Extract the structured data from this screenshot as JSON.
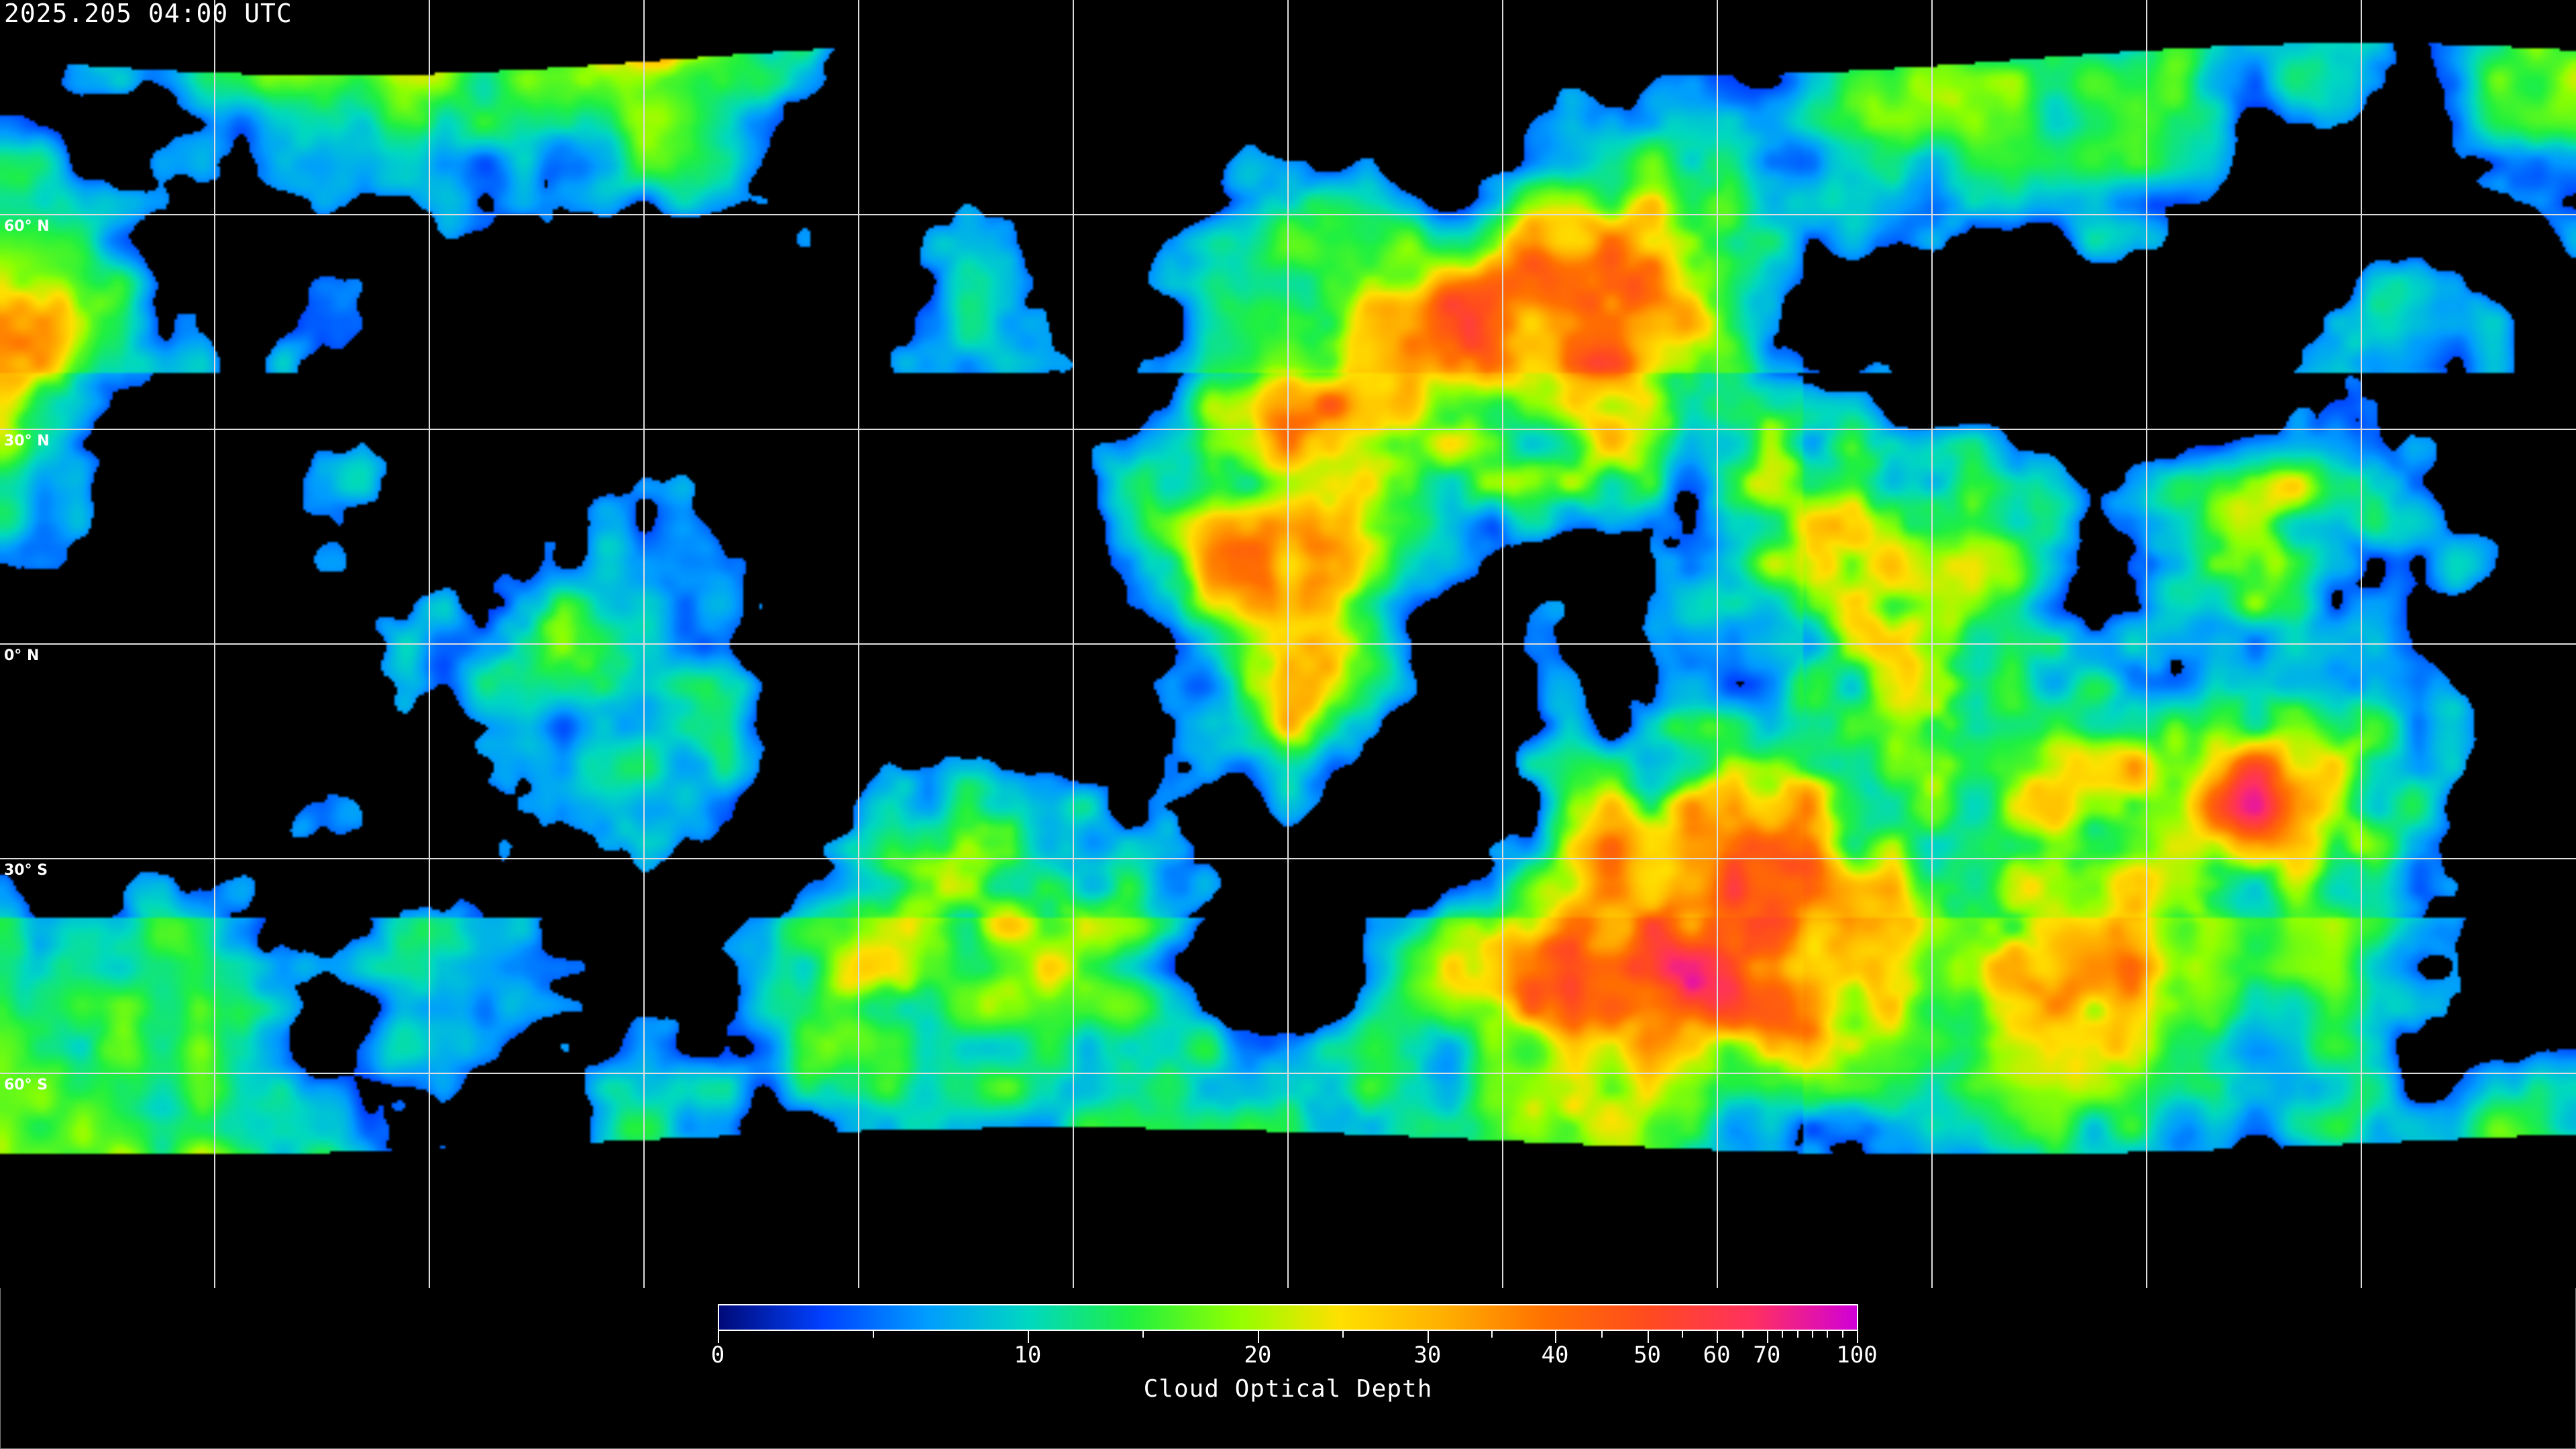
{
  "header": {
    "timestamp": "2025.205 04:00 UTC"
  },
  "map": {
    "projection": "equirectangular",
    "latitude_labels": [
      "60° N",
      "30° N",
      "0° N",
      "30° S",
      "60° S"
    ],
    "gridline_color": "#ffffff",
    "coastline_color": "#ffffff",
    "no_data_color": "#000000"
  },
  "colorbar": {
    "title": "Cloud Optical Depth",
    "range": [
      0,
      100
    ],
    "tick_labels": [
      "0",
      "10",
      "20",
      "30",
      "40",
      "50",
      "60",
      "70",
      "100"
    ],
    "colors": [
      "#000a78",
      "#0040ff",
      "#009cff",
      "#00d8c0",
      "#20f040",
      "#90ff00",
      "#ffe000",
      "#ffb000",
      "#ff7000",
      "#ff4a20",
      "#ff3060",
      "#d000d8"
    ]
  }
}
